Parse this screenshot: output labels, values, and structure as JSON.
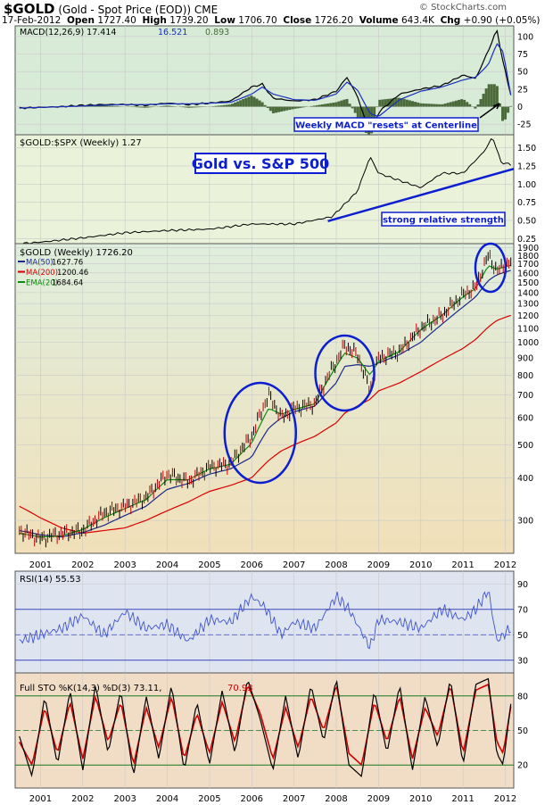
{
  "header": {
    "symbol": "$GOLD",
    "description": "(Gold - Spot Price (EOD)) CME",
    "date": "17-Feb-2012",
    "open_label": "Open",
    "open": "1727.40",
    "high_label": "High",
    "high": "1739.20",
    "low_label": "Low",
    "low": "1706.70",
    "close_label": "Close",
    "close": "1726.20",
    "volume_label": "Volume",
    "volume": "643.4K",
    "chg_label": "Chg",
    "chg": "+0.90 (+0.05%)",
    "brand": "© StockCharts.com"
  },
  "colors": {
    "macd_bg": "#d7ebd7",
    "ratio_bg": "#eaf2da",
    "price_top": "#dfeedd",
    "price_bottom": "#f1e0b9",
    "rsi_bg": "#dfe4f1",
    "sto_bg": "#f1ddc6",
    "macd_line": "#000000",
    "macd_signal": "#1a2fbd",
    "macd_hist": "#4b6b3b",
    "ma50": "#1b2a8a",
    "ma200": "#d90000",
    "ema20": "#0f8a0f",
    "annot": "#0c1fd0",
    "rsi_line": "#4054c9",
    "sto_k": "#000000",
    "sto_d": "#cc0000"
  },
  "chart_data": [
    {
      "type": "line",
      "title": "MACD(12,26,9)",
      "legend": [
        {
          "name": "MACD(12,26,9)",
          "value": "17.414",
          "color": "#000000"
        },
        {
          "name": "",
          "value": "16.521",
          "color": "#1a2fbd"
        },
        {
          "name": "",
          "value": "0.893",
          "color": "#4b6b3b"
        }
      ],
      "yticks": [
        100,
        75,
        50,
        25,
        0,
        -25
      ],
      "ylim": [
        -40,
        115
      ],
      "x": [
        2000.5,
        2001,
        2001.5,
        2002,
        2002.5,
        2003,
        2003.5,
        2004,
        2004.5,
        2005,
        2005.5,
        2006,
        2006.25,
        2006.5,
        2007,
        2007.5,
        2008,
        2008.25,
        2008.5,
        2008.8,
        2009,
        2009.5,
        2010,
        2010.5,
        2011,
        2011.3,
        2011.6,
        2011.8,
        2011.95,
        2012.13
      ],
      "series": [
        {
          "role": "macd",
          "values": [
            -2,
            -1,
            0,
            2,
            3,
            3,
            2,
            5,
            3,
            5,
            8,
            28,
            32,
            12,
            8,
            10,
            22,
            42,
            15,
            -40,
            -8,
            18,
            25,
            30,
            45,
            40,
            80,
            110,
            62,
            17
          ]
        },
        {
          "role": "signal",
          "values": [
            -2,
            -1,
            0,
            1,
            2,
            3,
            3,
            4,
            4,
            5,
            6,
            18,
            28,
            18,
            10,
            9,
            18,
            35,
            24,
            -10,
            -14,
            10,
            22,
            28,
            38,
            42,
            60,
            90,
            78,
            16.5
          ]
        }
      ],
      "annotation": "Weekly MACD \"resets\" at Centerline"
    },
    {
      "type": "line",
      "title": "$GOLD:$SPX (Weekly) 1.27",
      "yticks": [
        1.5,
        1.25,
        1.0,
        0.75,
        0.5,
        0.25
      ],
      "ylim": [
        0.18,
        1.68
      ],
      "x": [
        2000.5,
        2001,
        2002,
        2003,
        2004,
        2005,
        2006,
        2007,
        2007.9,
        2008.5,
        2008.8,
        2009,
        2009.5,
        2010,
        2010.5,
        2011,
        2011.5,
        2011.7,
        2011.9,
        2012.13
      ],
      "series": [
        {
          "name": "$GOLD:$SPX",
          "values": [
            0.18,
            0.2,
            0.26,
            0.33,
            0.36,
            0.38,
            0.45,
            0.45,
            0.55,
            0.9,
            1.38,
            1.15,
            1.05,
            0.95,
            1.15,
            1.15,
            1.45,
            1.65,
            1.3,
            1.27
          ]
        }
      ],
      "annotations": [
        "Gold vs. S&P 500",
        "strong relative strength"
      ]
    },
    {
      "type": "line",
      "title": "$GOLD (Weekly) 1726.20",
      "legend": [
        {
          "name": "MA(50)",
          "value": "1627.76",
          "color": "#1b2a8a"
        },
        {
          "name": "MA(200)",
          "value": "1200.46",
          "color": "#d90000"
        },
        {
          "name": "EMA(20)",
          "value": "1684.64",
          "color": "#0f8a0f"
        }
      ],
      "scale": "log",
      "yticks": [
        1900,
        1800,
        1700,
        1600,
        1500,
        1400,
        1300,
        1200,
        1100,
        1000,
        900,
        800,
        700,
        600,
        500,
        400,
        300
      ],
      "ylim": [
        240,
        1950
      ],
      "xticks": [
        2001,
        2002,
        2003,
        2004,
        2005,
        2006,
        2007,
        2008,
        2009,
        2010,
        2011,
        2012
      ],
      "x": [
        2000.5,
        2001,
        2001.5,
        2002,
        2002.5,
        2003,
        2003.5,
        2004,
        2004.5,
        2005,
        2005.5,
        2006,
        2006.4,
        2006.7,
        2007,
        2007.5,
        2008,
        2008.2,
        2008.5,
        2008.8,
        2009,
        2009.5,
        2010,
        2010.5,
        2011,
        2011.3,
        2011.6,
        2011.8,
        2012.13
      ],
      "series": [
        {
          "name": "$GOLD",
          "values": [
            280,
            265,
            275,
            280,
            315,
            330,
            350,
            410,
            390,
            430,
            440,
            530,
            700,
            600,
            640,
            660,
            880,
            980,
            920,
            720,
            900,
            940,
            1100,
            1200,
            1380,
            1450,
            1800,
            1620,
            1726.2
          ]
        },
        {
          "name": "EMA(20)",
          "values": [
            275,
            268,
            270,
            282,
            305,
            325,
            345,
            395,
            395,
            425,
            438,
            505,
            640,
            615,
            635,
            660,
            850,
            930,
            900,
            800,
            880,
            940,
            1090,
            1200,
            1360,
            1440,
            1680,
            1640,
            1684.64
          ]
        },
        {
          "name": "MA(50)",
          "values": [
            280,
            272,
            268,
            276,
            290,
            310,
            330,
            370,
            385,
            410,
            425,
            460,
            560,
            600,
            625,
            650,
            760,
            850,
            860,
            850,
            870,
            920,
            1000,
            1130,
            1270,
            1360,
            1520,
            1580,
            1627.76
          ]
        },
        {
          "name": "MA(200)",
          "values": [
            330,
            305,
            285,
            275,
            280,
            285,
            300,
            320,
            340,
            365,
            380,
            400,
            450,
            480,
            500,
            530,
            580,
            620,
            650,
            680,
            720,
            760,
            820,
            890,
            960,
            1020,
            1110,
            1160,
            1200.46
          ]
        }
      ]
    },
    {
      "type": "line",
      "title": "RSI(14) 55.53",
      "yticks": [
        90,
        70,
        50,
        30
      ],
      "ylim": [
        20,
        100
      ],
      "x": [
        2000.5,
        2001,
        2001.5,
        2002,
        2002.5,
        2003,
        2003.5,
        2004,
        2004.5,
        2005,
        2005.5,
        2006,
        2006.3,
        2006.7,
        2007,
        2007.5,
        2008,
        2008.3,
        2008.8,
        2009,
        2009.5,
        2010,
        2010.5,
        2011,
        2011.3,
        2011.6,
        2011.8,
        2012.13
      ],
      "series": [
        {
          "name": "RSI(14)",
          "values": [
            45,
            50,
            55,
            65,
            50,
            68,
            55,
            58,
            45,
            62,
            60,
            80,
            72,
            50,
            60,
            55,
            80,
            70,
            40,
            62,
            60,
            55,
            70,
            62,
            70,
            85,
            45,
            55.53
          ]
        }
      ]
    },
    {
      "type": "line",
      "title": "Full STO %K(14,3) %D(3) 73.11, 70.93",
      "legend": [
        {
          "name": "Full STO %K(14,3) %D(3)",
          "value": "73.11",
          "color": "#000000"
        },
        {
          "name": "",
          "value": "70.93",
          "color": "#cc0000"
        }
      ],
      "yticks": [
        80,
        50,
        20
      ],
      "ylim": [
        0,
        100
      ],
      "xticks": [
        2001,
        2002,
        2003,
        2004,
        2005,
        2006,
        2007,
        2008,
        2009,
        2010,
        2011,
        2012
      ],
      "x": [
        2000.5,
        2000.8,
        2001.1,
        2001.4,
        2001.7,
        2002,
        2002.3,
        2002.6,
        2002.9,
        2003.2,
        2003.5,
        2003.8,
        2004.1,
        2004.4,
        2004.7,
        2005,
        2005.3,
        2005.6,
        2005.9,
        2006.2,
        2006.5,
        2006.8,
        2007.1,
        2007.4,
        2007.7,
        2008,
        2008.3,
        2008.6,
        2008.9,
        2009.2,
        2009.5,
        2009.8,
        2010.1,
        2010.4,
        2010.7,
        2011,
        2011.3,
        2011.6,
        2011.8,
        2011.95,
        2012.13
      ],
      "series": [
        {
          "name": "%K",
          "values": [
            45,
            10,
            80,
            20,
            85,
            15,
            90,
            30,
            85,
            10,
            80,
            25,
            90,
            15,
            75,
            20,
            85,
            30,
            95,
            60,
            15,
            80,
            25,
            90,
            40,
            95,
            20,
            10,
            85,
            30,
            90,
            15,
            80,
            35,
            95,
            20,
            90,
            95,
            30,
            20,
            73.11
          ]
        },
        {
          "name": "%D",
          "values": [
            40,
            20,
            70,
            30,
            75,
            25,
            80,
            40,
            75,
            20,
            70,
            35,
            80,
            25,
            65,
            30,
            75,
            40,
            90,
            65,
            25,
            70,
            35,
            80,
            50,
            90,
            30,
            20,
            75,
            40,
            80,
            25,
            70,
            45,
            90,
            30,
            85,
            90,
            40,
            30,
            70.93
          ]
        }
      ]
    }
  ]
}
